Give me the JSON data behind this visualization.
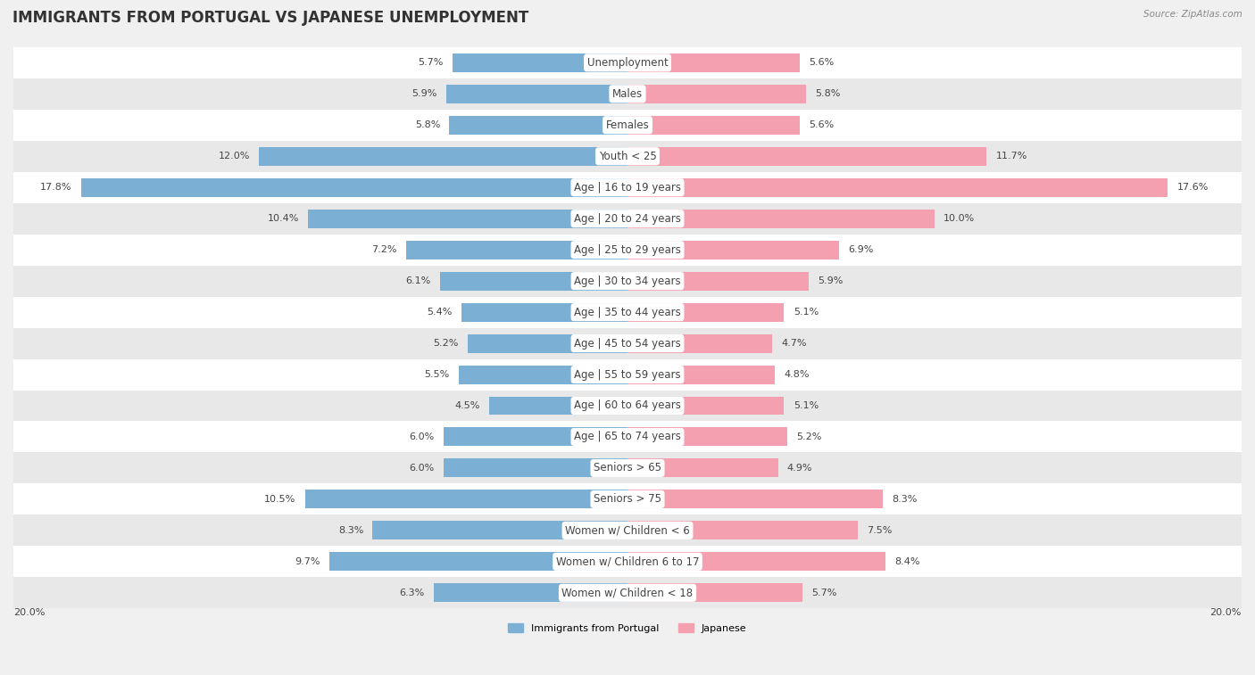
{
  "title": "IMMIGRANTS FROM PORTUGAL VS JAPANESE UNEMPLOYMENT",
  "source": "Source: ZipAtlas.com",
  "categories": [
    "Unemployment",
    "Males",
    "Females",
    "Youth < 25",
    "Age | 16 to 19 years",
    "Age | 20 to 24 years",
    "Age | 25 to 29 years",
    "Age | 30 to 34 years",
    "Age | 35 to 44 years",
    "Age | 45 to 54 years",
    "Age | 55 to 59 years",
    "Age | 60 to 64 years",
    "Age | 65 to 74 years",
    "Seniors > 65",
    "Seniors > 75",
    "Women w/ Children < 6",
    "Women w/ Children 6 to 17",
    "Women w/ Children < 18"
  ],
  "portugal_values": [
    5.7,
    5.9,
    5.8,
    12.0,
    17.8,
    10.4,
    7.2,
    6.1,
    5.4,
    5.2,
    5.5,
    4.5,
    6.0,
    6.0,
    10.5,
    8.3,
    9.7,
    6.3
  ],
  "japanese_values": [
    5.6,
    5.8,
    5.6,
    11.7,
    17.6,
    10.0,
    6.9,
    5.9,
    5.1,
    4.7,
    4.8,
    5.1,
    5.2,
    4.9,
    8.3,
    7.5,
    8.4,
    5.7
  ],
  "portugal_color": "#7bafd4",
  "japanese_color": "#f4a0b0",
  "background_color": "#f0f0f0",
  "row_color_even": "#ffffff",
  "row_color_odd": "#e8e8e8",
  "x_max": 20.0,
  "legend_labels": [
    "Immigrants from Portugal",
    "Japanese"
  ],
  "title_fontsize": 12,
  "label_fontsize": 8.5,
  "value_fontsize": 8,
  "bar_height": 0.6
}
